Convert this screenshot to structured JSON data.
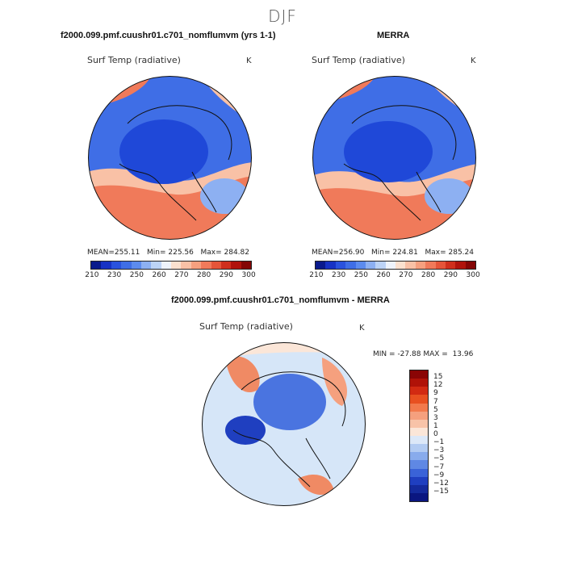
{
  "season": "DJF",
  "panels": [
    {
      "title": "f2000.099.pmf.cuushr01.c701_nomflumvm (yrs 1-1)",
      "variable": "Surf Temp (radiative)",
      "units": "K",
      "stats": {
        "mean_label": "MEAN=",
        "mean": "255.11",
        "min_label": "Min=",
        "min": "225.56",
        "max_label": "Max=",
        "max": "284.82"
      }
    },
    {
      "title": "MERRA",
      "variable": "Surf Temp (radiative)",
      "units": "K",
      "stats": {
        "mean_label": "MEAN=",
        "mean": "256.90",
        "min_label": "Min=",
        "min": "224.81",
        "max_label": "Max=",
        "max": "285.24"
      }
    }
  ],
  "abs_colorbar": {
    "ticks": [
      "210",
      "230",
      "250",
      "260",
      "270",
      "280",
      "290",
      "300"
    ],
    "colors": [
      "#0a1a8c",
      "#1732c4",
      "#2a52dd",
      "#3f6ee6",
      "#5c8bee",
      "#8db0f2",
      "#bcd3f6",
      "#eef3fb",
      "#fbe1cf",
      "#f9c1a6",
      "#f6a07f",
      "#f07a5a",
      "#e55539",
      "#cf2f1c",
      "#b0130c",
      "#840606"
    ]
  },
  "diff_panel": {
    "title": "f2000.099.pmf.cuushr01.c701_nomflumvm - MERRA",
    "variable": "Surf Temp (radiative)",
    "units": "K",
    "minmax": {
      "min_label": "MIN =",
      "min": "-27.88",
      "max_label": "MAX =",
      "max": "13.96"
    }
  },
  "diff_colorbar": {
    "labels": [
      "15",
      "12",
      "9",
      "7",
      "5",
      "3",
      "1",
      "0",
      "−1",
      "−3",
      "−5",
      "−7",
      "−9",
      "−12",
      "−15"
    ],
    "colors": [
      "#8a0505",
      "#b01208",
      "#d22a12",
      "#e85020",
      "#f27a4c",
      "#f5a07e",
      "#f8c3a8",
      "#fbe6d8",
      "#dce8f8",
      "#b2cbf2",
      "#88abec",
      "#5f88e4",
      "#3a63d8",
      "#1f3fc0",
      "#142a9c",
      "#0a1680"
    ]
  },
  "map_colors": {
    "cold_deep": "#1f48d8",
    "cold": "#3f6ee6",
    "cold_light": "#8db0f2",
    "warm_light": "#f9c1a6",
    "warm": "#f07a5a",
    "warm_deep": "#e55539",
    "diff_base": "#d6e6f8",
    "diff_blue": "#4a74e0",
    "diff_red": "#f08a64"
  }
}
